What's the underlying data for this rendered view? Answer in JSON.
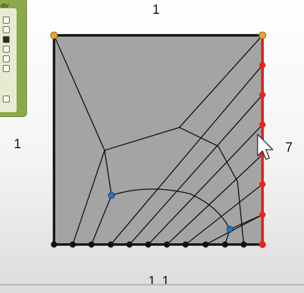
{
  "panel": {
    "label": "div",
    "checkboxes": [
      {
        "checked": false
      },
      {
        "checked": false
      },
      {
        "checked": true
      },
      {
        "checked": false
      },
      {
        "checked": false
      },
      {
        "checked": false
      },
      {
        "checked": false
      }
    ]
  },
  "edge_counts": {
    "top": "1",
    "left": "1",
    "right": "7",
    "bottom": "1 1"
  },
  "colors": {
    "fill": "#a4a4a4",
    "selected_edge": "#e8221c",
    "corner_vertex": "#e9a336",
    "interior_vertex": "#2077c8",
    "boundary": "#111111"
  }
}
